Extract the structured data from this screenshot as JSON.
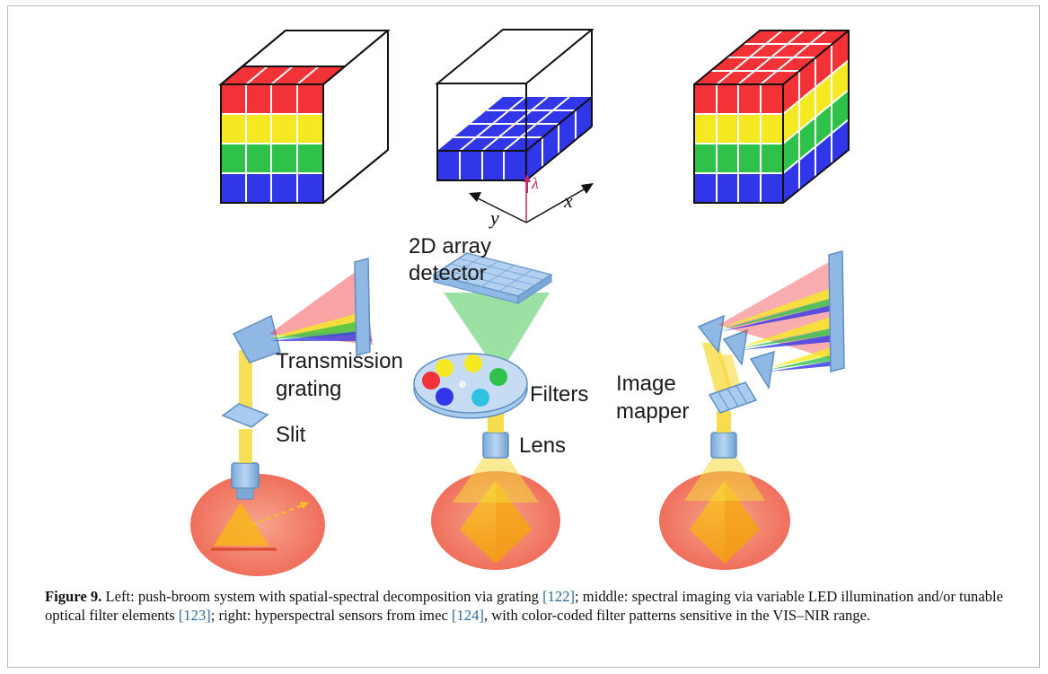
{
  "labels": {
    "detector": [
      "2D array",
      "detector"
    ],
    "transmission_grating": [
      "Transmission",
      "grating"
    ],
    "slit": "Slit",
    "filters": "Filters",
    "lens": "Lens",
    "image_mapper": [
      "Image",
      "mapper"
    ],
    "axis_x": "x",
    "axis_y": "y",
    "axis_lambda": "λ"
  },
  "colors": {
    "red": "#f23236",
    "yellow": "#f5ea22",
    "green": "#2fc24a",
    "blue": "#3136e8",
    "sample": "#f2856e",
    "beam": "#f6d93a",
    "optics": "#9cc3ea"
  },
  "caption": {
    "figure_label": "Figure 9.",
    "t1": " Left: push-broom system with spatial-spectral decomposition via grating ",
    "r1": "[122]",
    "t2": "; middle: spectral imaging via variable LED illumination and/or tunable optical filter elements ",
    "r2": "[123]",
    "t3": "; right: hyperspectral sensors from imec ",
    "r3": "[124]",
    "t4": ", with color-coded filter patterns sensitive in the VIS–NIR range."
  }
}
